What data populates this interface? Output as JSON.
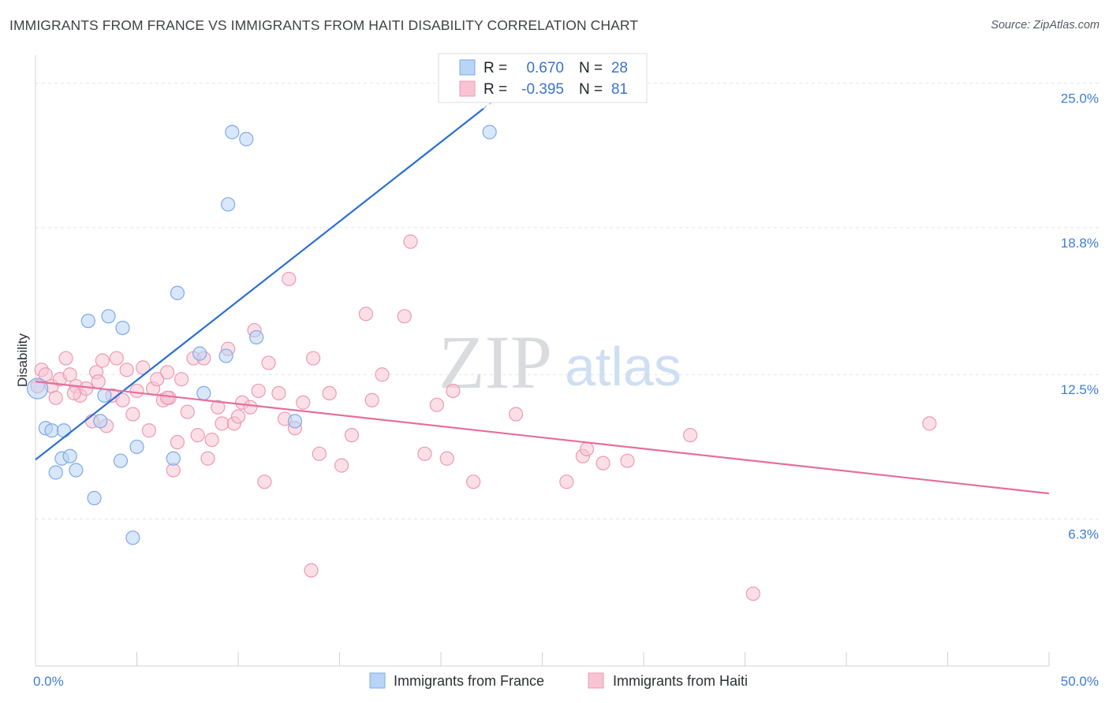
{
  "title": "IMMIGRANTS FROM FRANCE VS IMMIGRANTS FROM HAITI DISABILITY CORRELATION CHART",
  "source": "Source: ZipAtlas.com",
  "watermark": {
    "zip": "ZIP",
    "atlas": "atlas"
  },
  "colors": {
    "france_fill": "#b8d4f6",
    "france_stroke": "#7eaae6",
    "france_line": "#2a6fd1",
    "haiti_fill": "#f8c4d3",
    "haiti_stroke": "#ec9ab4",
    "haiti_line": "#e56f9b",
    "grid": "#e3e5e8",
    "tick_text": "#3e7dd8"
  },
  "stats": {
    "france": {
      "r_label": "R = ",
      "r_value": "0.670",
      "n_label": "N = ",
      "n_value": "28"
    },
    "haiti": {
      "r_label": "R = ",
      "r_value": "-0.395",
      "n_label": "N = ",
      "n_value": "81"
    }
  },
  "chart_data": {
    "type": "scatter",
    "title": "IMMIGRANTS FROM FRANCE VS IMMIGRANTS FROM HAITI DISABILITY CORRELATION CHART",
    "xlabel": "",
    "ylabel": "Disability",
    "xlim": [
      0,
      50
    ],
    "ylim": [
      0,
      26.2
    ],
    "x_tick_labels": [
      {
        "value": 0,
        "label": "0.0%"
      },
      {
        "value": 50,
        "label": "50.0%"
      }
    ],
    "y_ticks": [
      {
        "value": 6.3,
        "label": "6.3%"
      },
      {
        "value": 12.5,
        "label": "12.5%"
      },
      {
        "value": 18.8,
        "label": "18.8%"
      },
      {
        "value": 25.0,
        "label": "25.0%"
      }
    ],
    "legend": [
      "Immigrants from France",
      "Immigrants from Haiti"
    ],
    "series": [
      {
        "name": "Immigrants from France",
        "key": "france",
        "r": 0.67,
        "n": 28,
        "trend": {
          "x": [
            0,
            24
          ],
          "y": [
            8.85,
            25.2
          ]
        },
        "points": [
          [
            0.1,
            11.9
          ],
          [
            0.5,
            10.2
          ],
          [
            0.8,
            10.1
          ],
          [
            1.0,
            8.3
          ],
          [
            1.3,
            8.9
          ],
          [
            1.7,
            9.0
          ],
          [
            2.0,
            8.4
          ],
          [
            2.6,
            14.8
          ],
          [
            2.9,
            7.2
          ],
          [
            3.2,
            10.5
          ],
          [
            3.4,
            11.6
          ],
          [
            3.6,
            15.0
          ],
          [
            4.2,
            8.8
          ],
          [
            4.3,
            14.5
          ],
          [
            5.0,
            9.4
          ],
          [
            4.8,
            5.5
          ],
          [
            6.8,
            8.9
          ],
          [
            7.0,
            16.0
          ],
          [
            8.1,
            13.4
          ],
          [
            8.3,
            11.7
          ],
          [
            9.5,
            19.8
          ],
          [
            9.7,
            22.9
          ],
          [
            10.4,
            22.6
          ],
          [
            10.9,
            14.1
          ],
          [
            12.8,
            10.5
          ],
          [
            22.4,
            22.9
          ],
          [
            9.4,
            13.3
          ],
          [
            1.4,
            10.1
          ]
        ]
      },
      {
        "name": "Immigrants from Haiti",
        "key": "haiti",
        "r": -0.395,
        "n": 81,
        "trend": {
          "x": [
            0,
            50
          ],
          "y": [
            12.2,
            7.4
          ]
        },
        "points": [
          [
            0.1,
            12.0
          ],
          [
            0.3,
            12.7
          ],
          [
            0.5,
            12.5
          ],
          [
            0.8,
            12.0
          ],
          [
            1.0,
            11.5
          ],
          [
            1.2,
            12.3
          ],
          [
            1.5,
            13.2
          ],
          [
            1.7,
            12.5
          ],
          [
            2.0,
            12.0
          ],
          [
            2.2,
            11.6
          ],
          [
            2.5,
            11.9
          ],
          [
            2.8,
            10.5
          ],
          [
            3.0,
            12.6
          ],
          [
            3.1,
            12.2
          ],
          [
            3.3,
            13.1
          ],
          [
            3.5,
            10.3
          ],
          [
            3.8,
            11.6
          ],
          [
            4.0,
            13.2
          ],
          [
            4.3,
            11.4
          ],
          [
            4.5,
            12.7
          ],
          [
            4.8,
            10.8
          ],
          [
            5.0,
            11.8
          ],
          [
            5.3,
            12.8
          ],
          [
            5.6,
            10.1
          ],
          [
            5.8,
            11.9
          ],
          [
            6.0,
            12.3
          ],
          [
            6.3,
            11.4
          ],
          [
            6.5,
            12.6
          ],
          [
            6.6,
            11.5
          ],
          [
            6.8,
            8.4
          ],
          [
            7.0,
            9.6
          ],
          [
            7.2,
            12.3
          ],
          [
            7.5,
            10.9
          ],
          [
            7.8,
            13.2
          ],
          [
            8.0,
            9.9
          ],
          [
            8.3,
            13.2
          ],
          [
            8.5,
            8.9
          ],
          [
            8.7,
            9.7
          ],
          [
            9.0,
            11.1
          ],
          [
            9.2,
            10.4
          ],
          [
            9.5,
            13.6
          ],
          [
            9.8,
            10.4
          ],
          [
            10.0,
            10.7
          ],
          [
            10.2,
            11.3
          ],
          [
            10.6,
            11.1
          ],
          [
            10.8,
            14.4
          ],
          [
            11.0,
            11.8
          ],
          [
            11.3,
            7.9
          ],
          [
            11.5,
            13.0
          ],
          [
            12.0,
            11.7
          ],
          [
            12.3,
            10.6
          ],
          [
            12.5,
            16.6
          ],
          [
            12.8,
            10.2
          ],
          [
            13.2,
            11.3
          ],
          [
            13.7,
            13.2
          ],
          [
            14.0,
            9.1
          ],
          [
            14.5,
            11.7
          ],
          [
            15.1,
            8.6
          ],
          [
            15.6,
            9.9
          ],
          [
            16.3,
            15.1
          ],
          [
            16.6,
            11.4
          ],
          [
            17.1,
            12.5
          ],
          [
            18.2,
            15.0
          ],
          [
            18.5,
            18.2
          ],
          [
            19.2,
            9.1
          ],
          [
            19.8,
            11.2
          ],
          [
            20.3,
            8.9
          ],
          [
            20.6,
            11.8
          ],
          [
            21.6,
            7.9
          ],
          [
            23.7,
            10.8
          ],
          [
            26.2,
            7.9
          ],
          [
            27.0,
            9.0
          ],
          [
            27.2,
            9.3
          ],
          [
            28.0,
            8.7
          ],
          [
            29.2,
            8.8
          ],
          [
            32.3,
            9.9
          ],
          [
            35.4,
            3.1
          ],
          [
            44.1,
            10.4
          ],
          [
            13.6,
            4.1
          ],
          [
            6.5,
            11.5
          ],
          [
            1.9,
            11.7
          ]
        ]
      }
    ]
  }
}
